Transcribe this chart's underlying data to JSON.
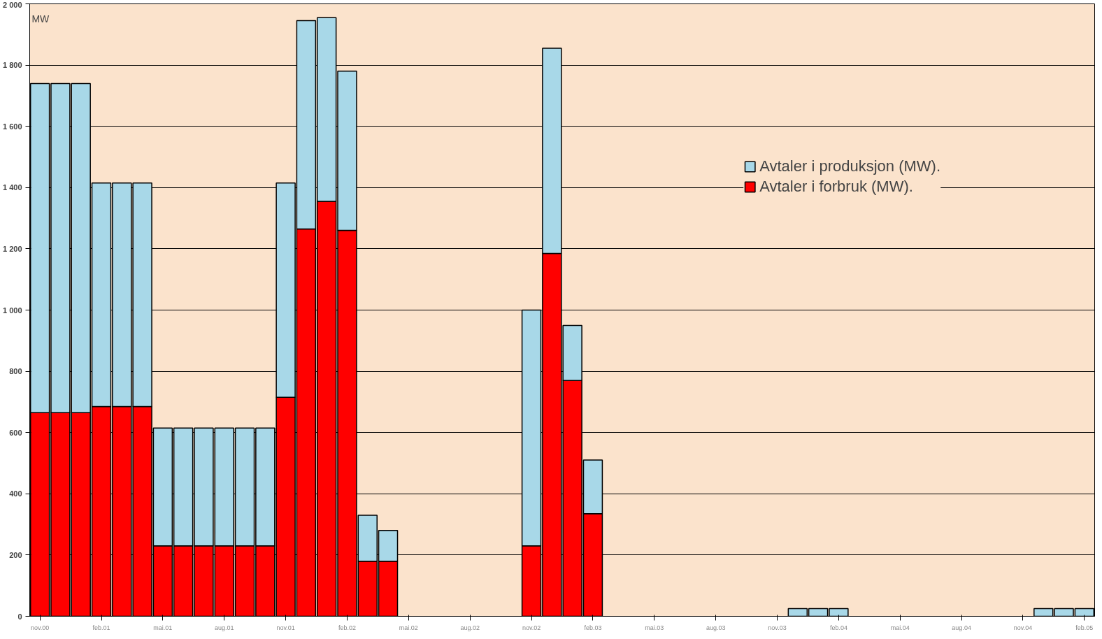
{
  "chart_data": {
    "type": "bar",
    "stacked": true,
    "ylabel": "MW",
    "categories": [
      "nov.00",
      null,
      null,
      "feb.01",
      null,
      null,
      "mai.01",
      null,
      null,
      "aug.01",
      null,
      null,
      "nov.01",
      null,
      null,
      "feb.02",
      null,
      null,
      "mai.02",
      null,
      null,
      "aug.02",
      null,
      null,
      "nov.02",
      null,
      null,
      "feb.03",
      null,
      null,
      "mai.03",
      null,
      null,
      "aug.03",
      null,
      null,
      "nov.03",
      null,
      null,
      "feb.04",
      null,
      null,
      "mai.04",
      null,
      null,
      "aug.04",
      null,
      null,
      "nov.04",
      null,
      null,
      "feb.05"
    ],
    "series": [
      {
        "name": "Avtaler i forbruk (MW).",
        "color": "#ff0000",
        "values": [
          665,
          665,
          665,
          685,
          685,
          685,
          230,
          230,
          230,
          230,
          230,
          230,
          715,
          1265,
          1355,
          1260,
          180,
          180,
          0,
          0,
          0,
          0,
          0,
          0,
          230,
          1185,
          770,
          335,
          0,
          0,
          0,
          0,
          0,
          0,
          0,
          0,
          0,
          0,
          0,
          0,
          0,
          0,
          0,
          0,
          0,
          0,
          0,
          0,
          0,
          0,
          0,
          0
        ]
      },
      {
        "name": "Avtaler i produksjon (MW).",
        "color": "#a8d8e8",
        "values": [
          1075,
          1075,
          1075,
          730,
          730,
          730,
          385,
          385,
          385,
          385,
          385,
          385,
          700,
          680,
          600,
          520,
          150,
          100,
          0,
          0,
          0,
          0,
          0,
          0,
          770,
          670,
          180,
          175,
          0,
          0,
          0,
          0,
          0,
          0,
          0,
          0,
          0,
          25,
          25,
          25,
          0,
          0,
          0,
          0,
          0,
          0,
          0,
          0,
          0,
          25,
          25,
          25
        ]
      }
    ],
    "ylim": [
      0,
      2000
    ],
    "yticks": [
      0,
      200,
      400,
      600,
      800,
      {
        "value": 1000,
        "label": "1 000"
      },
      {
        "value": 1200,
        "label": "1 200"
      },
      {
        "value": 1400,
        "label": "1 400"
      },
      {
        "value": 1600,
        "label": "1 600"
      },
      {
        "value": 1800,
        "label": "1 800"
      },
      {
        "value": 2000,
        "label": "2 000"
      }
    ],
    "grid": "y",
    "legend": "top right"
  }
}
